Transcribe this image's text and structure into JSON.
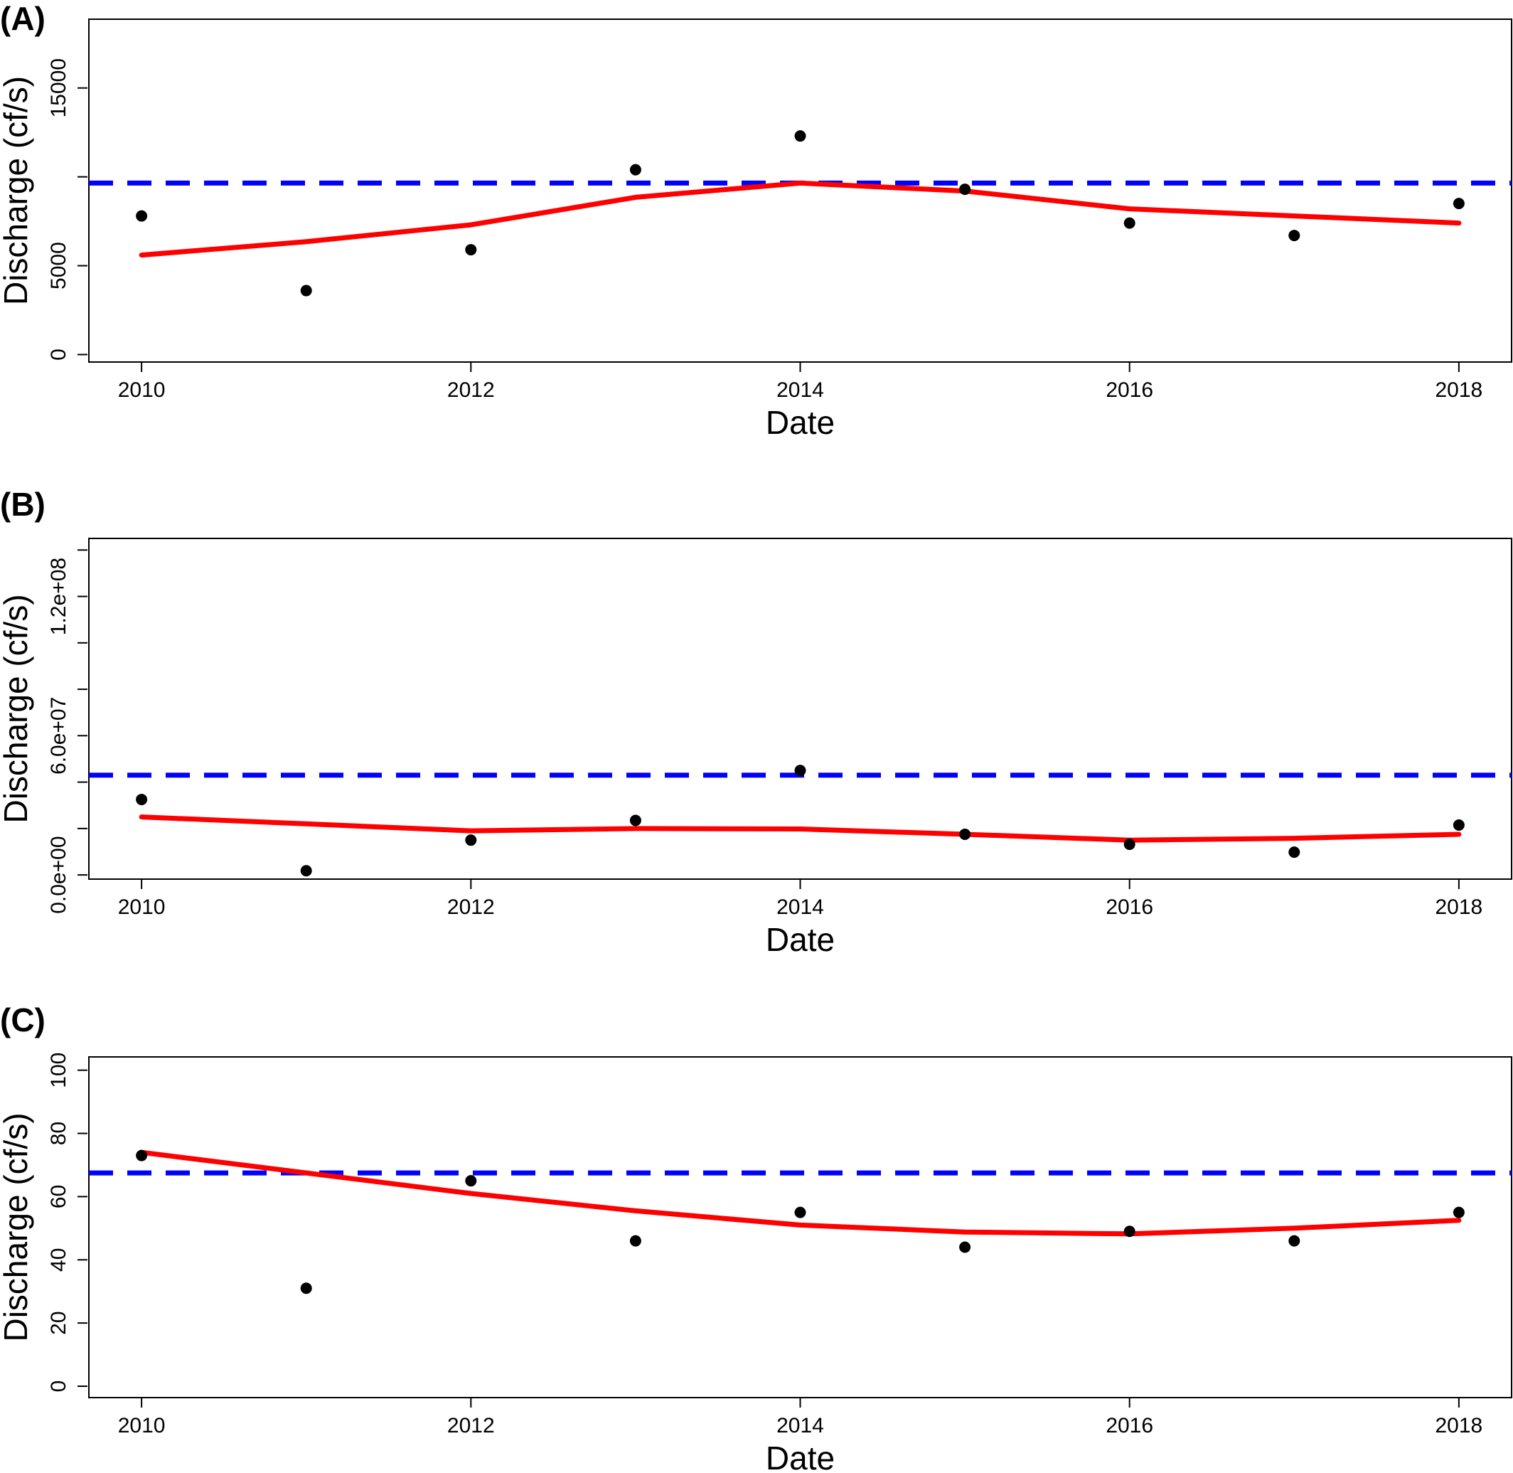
{
  "figure": {
    "panels": [
      "(A)",
      "(B)",
      "(C)"
    ]
  },
  "chart_data": [
    {
      "type": "scatter",
      "panel_label": "(A)",
      "xlabel": "Date",
      "ylabel": "Discharge (cf/s)",
      "xlim": [
        2009.68,
        2018.32
      ],
      "ylim": [
        -420,
        18870
      ],
      "x_ticks": [
        2010,
        2012,
        2014,
        2016,
        2018
      ],
      "x_tick_labels": [
        "2010",
        "2012",
        "2014",
        "2016",
        "2018"
      ],
      "y_ticks": [
        0,
        5000,
        10000,
        15000,
        20000
      ],
      "y_tick_labels": [
        "0",
        "5000",
        "",
        "15000",
        ""
      ],
      "points": {
        "x": [
          2010,
          2011,
          2012,
          2013,
          2014,
          2015,
          2016,
          2017,
          2018
        ],
        "y": [
          7800,
          3600,
          5900,
          10400,
          12300,
          9300,
          7400,
          6700,
          8500
        ]
      },
      "fit_line": {
        "color": "#ff0000",
        "x": [
          2010,
          2011,
          2012,
          2013,
          2014,
          2015,
          2016,
          2017,
          2018
        ],
        "y": [
          5600,
          6350,
          7300,
          8850,
          9650,
          9200,
          8200,
          7800,
          7400
        ]
      },
      "reference_line": {
        "color": "#0000ff",
        "y": 9650
      },
      "point_color": "#000000"
    },
    {
      "type": "scatter",
      "panel_label": "(B)",
      "xlabel": "Date",
      "ylabel": "Discharge (cf/s)",
      "xlim": [
        2009.68,
        2018.32
      ],
      "ylim": [
        -1800000,
        145000000
      ],
      "x_ticks": [
        2010,
        2012,
        2014,
        2016,
        2018
      ],
      "x_tick_labels": [
        "2010",
        "2012",
        "2014",
        "2016",
        "2018"
      ],
      "y_ticks": [
        0,
        20000000,
        40000000,
        60000000,
        80000000,
        100000000,
        120000000,
        140000000
      ],
      "y_tick_labels": [
        "0.0e+00",
        "",
        "",
        "6.0e+07",
        "",
        "",
        "1.2e+08",
        ""
      ],
      "points": {
        "x": [
          2010,
          2011,
          2012,
          2013,
          2014,
          2015,
          2016,
          2017,
          2018
        ],
        "y": [
          32500000,
          1800000,
          15000000,
          23500000,
          45000000,
          17500000,
          13200000,
          9800000,
          21500000
        ]
      },
      "fit_line": {
        "color": "#ff0000",
        "x": [
          2010,
          2011,
          2012,
          2013,
          2014,
          2015,
          2016,
          2017,
          2018
        ],
        "y": [
          25000000,
          22000000,
          19000000,
          20000000,
          19800000,
          17500000,
          15000000,
          15800000,
          17500000
        ]
      },
      "reference_line": {
        "color": "#0000ff",
        "y": 43000000
      },
      "point_color": "#000000"
    },
    {
      "type": "scatter",
      "panel_label": "(C)",
      "xlabel": "Date",
      "ylabel": "Discharge (cf/s)",
      "xlim": [
        2009.68,
        2018.32
      ],
      "ylim": [
        -3.6,
        104.2
      ],
      "x_ticks": [
        2010,
        2012,
        2014,
        2016,
        2018
      ],
      "x_tick_labels": [
        "2010",
        "2012",
        "2014",
        "2016",
        "2018"
      ],
      "y_ticks": [
        0,
        20,
        40,
        60,
        80,
        100
      ],
      "y_tick_labels": [
        "0",
        "20",
        "40",
        "60",
        "80",
        "100"
      ],
      "points": {
        "x": [
          2010,
          2011,
          2012,
          2013,
          2014,
          2015,
          2016,
          2017,
          2018
        ],
        "y": [
          73,
          31,
          65,
          46,
          55,
          44,
          49,
          46,
          55
        ]
      },
      "fit_line": {
        "color": "#ff0000",
        "x": [
          2010,
          2011,
          2012,
          2013,
          2014,
          2015,
          2016,
          2017,
          2018
        ],
        "y": [
          74,
          67.5,
          61,
          55.5,
          51,
          48.8,
          48.2,
          50,
          52.5
        ]
      },
      "reference_line": {
        "color": "#0000ff",
        "y": 67.5
      },
      "point_color": "#000000"
    }
  ]
}
